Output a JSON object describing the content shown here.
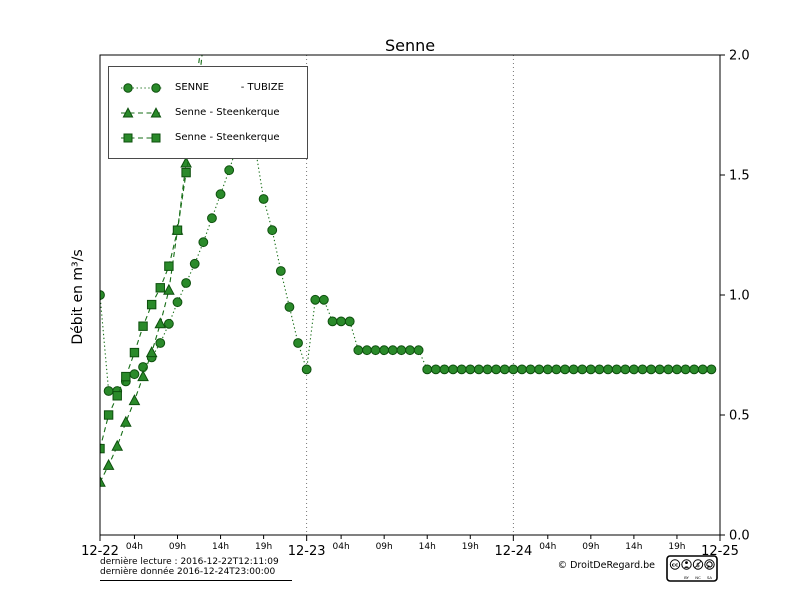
{
  "chart_data": {
    "type": "line",
    "title": "Senne",
    "ylabel": "Débit en m³/s",
    "ylim": [
      0.0,
      2.0
    ],
    "yticks": [
      0.0,
      0.5,
      1.0,
      1.5,
      2.0
    ],
    "x_range_hours": 72,
    "x_start_hour": 0,
    "x_step_hours": 1,
    "x_major": [
      {
        "label": "12-22",
        "hour": 0
      },
      {
        "label": "12-23",
        "hour": 24
      },
      {
        "label": "12-24",
        "hour": 48
      },
      {
        "label": "12-25",
        "hour": 72
      }
    ],
    "x_minor_hours": [
      4,
      9,
      14,
      19
    ],
    "x_minor_labels": [
      "04h",
      "09h",
      "14h",
      "19h"
    ],
    "grid_hours": [
      24,
      48
    ],
    "grid_style": "dotted",
    "legend_position": "upper-left",
    "colors": {
      "series_line": "#176e17",
      "marker_fill": "#2a8a2a",
      "marker_edge": "#0d4f0d",
      "grid": "#555555",
      "axis": "#000000"
    },
    "series": [
      {
        "name": "SENNE          - TUBIZE",
        "marker": "circle",
        "line": "dotted",
        "values": [
          1.0,
          0.6,
          0.6,
          0.64,
          0.67,
          0.7,
          0.74,
          0.8,
          0.88,
          0.97,
          1.05,
          1.13,
          1.22,
          1.32,
          1.42,
          1.52,
          1.63,
          1.75,
          1.62,
          1.4,
          1.27,
          1.1,
          0.95,
          0.8,
          0.69,
          0.98,
          0.98,
          0.89,
          0.89,
          0.89,
          0.77,
          0.77,
          0.77,
          0.77,
          0.77,
          0.77,
          0.77,
          0.77,
          0.69,
          0.69,
          0.69,
          0.69,
          0.69,
          0.69,
          0.69,
          0.69,
          0.69,
          0.69,
          0.69,
          0.69,
          0.69,
          0.69,
          0.69,
          0.69,
          0.69,
          0.69,
          0.69,
          0.69,
          0.69,
          0.69,
          0.69,
          0.69,
          0.69,
          0.69,
          0.69,
          0.69,
          0.69,
          0.69,
          0.69,
          0.69,
          0.69,
          0.69
        ]
      },
      {
        "name": "Senne - Steenkerque",
        "marker": "triangle",
        "line": "dashed",
        "values": [
          0.22,
          0.29,
          0.37,
          0.47,
          0.56,
          0.66,
          0.76,
          0.88,
          1.02,
          1.27,
          1.55,
          1.85,
          2.1
        ]
      },
      {
        "name": "Senne - Steenkerque",
        "marker": "square",
        "line": "dashed",
        "values": [
          0.36,
          0.5,
          0.58,
          0.66,
          0.76,
          0.87,
          0.96,
          1.03,
          1.12,
          1.27,
          1.51,
          1.72,
          2.05
        ]
      }
    ]
  },
  "footer": {
    "last_reading": "dernière lecture : 2016-12-22T12:11:09",
    "last_data": "dernière donnée  2016-12-24T23:00:00",
    "copyright": "© DroitDeRegard.be",
    "cc_label": "cc",
    "license_by": "BY",
    "license_nc": "NC",
    "license_sa": "SA"
  }
}
